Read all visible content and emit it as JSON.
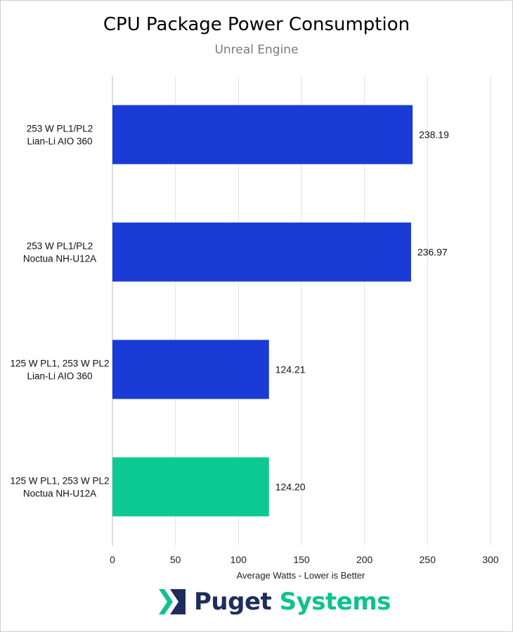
{
  "chart_data": {
    "type": "bar",
    "orientation": "horizontal",
    "title": "CPU Package Power Consumption",
    "subtitle": "Unreal Engine",
    "xlabel": "Average Watts - Lower is Better",
    "ylabel": "",
    "xlim": [
      0,
      300
    ],
    "xticks": [
      0,
      50,
      100,
      150,
      200,
      250,
      300
    ],
    "grid": true,
    "legend": "none",
    "categories": [
      [
        "253 W PL1/PL2",
        "Lian-Li AIO 360"
      ],
      [
        "253 W PL1/PL2",
        "Noctua NH-U12A"
      ],
      [
        "125 W PL1, 253 W PL2",
        "Lian-Li AIO 360"
      ],
      [
        "125 W PL1, 253 W PL2",
        "Noctua NH-U12A"
      ]
    ],
    "values": [
      238.19,
      236.97,
      124.21,
      124.2
    ],
    "value_labels": [
      "238.19",
      "236.97",
      "124.21",
      "124.20"
    ],
    "bar_colors": [
      "#1a3bd6",
      "#1a3bd6",
      "#1a3bd6",
      "#0cc994"
    ]
  },
  "branding": {
    "word1": "Puget",
    "word2": "Systems",
    "logo_icon": "puget-chevron-logo-icon",
    "colors": {
      "navy": "#1f2d5c",
      "green": "#0ec28e"
    }
  }
}
